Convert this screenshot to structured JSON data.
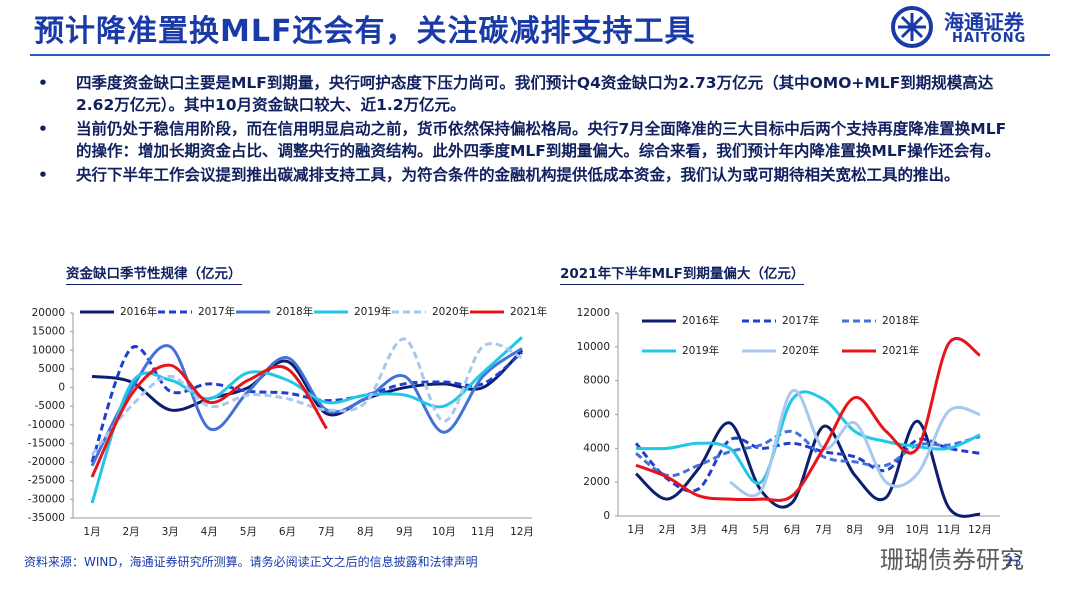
{
  "header": {
    "title": "预计降准置换MLF还会有，关注碳减排支持工具",
    "logo_cn": "海通证券",
    "logo_en": "HAITONG"
  },
  "bullets": [
    "四季度资金缺口主要是MLF到期量，央行呵护态度下压力尚可。我们预计Q4资金缺口为2.73万亿元（其中OMO+MLF到期规模高达2.62万亿元）。其中10月资金缺口较大、近1.2万亿元。",
    "当前仍处于稳信用阶段，而在信用明显启动之前，货币依然保持偏松格局。央行7月全面降准的三大目标中后两个支持再度降准置换MLF的操作：增加长期资金占比、调整央行的融资结构。此外四季度MLF到期量偏大。综合来看，我们预计年内降准置换MLF操作还会有。",
    "央行下半年工作会议提到推出碳减排支持工具，为符合条件的金融机构提供低成本资金，我们认为或可期待相关宽松工具的推出。"
  ],
  "chart_data": [
    {
      "type": "line",
      "title": "资金缺口季节性规律（亿元）",
      "categories": [
        "1月",
        "2月",
        "3月",
        "4月",
        "5月",
        "6月",
        "7月",
        "8月",
        "9月",
        "10月",
        "11月",
        "12月"
      ],
      "ylim": [
        -35000,
        20000
      ],
      "yticks": [
        -35000,
        -30000,
        -25000,
        -20000,
        -15000,
        -10000,
        -5000,
        0,
        5000,
        10000,
        15000,
        20000
      ],
      "legend": "top",
      "series": [
        {
          "name": "2016年",
          "color": "#0b1f6e",
          "line_style": "solid",
          "values": [
            3000,
            1500,
            -6000,
            -3000,
            0,
            7000,
            -7000,
            -3000,
            0,
            1000,
            0,
            10000
          ]
        },
        {
          "name": "2017年",
          "color": "#1e3fcf",
          "line_style": "dashed",
          "values": [
            -20000,
            10500,
            -1000,
            1000,
            -1000,
            -1500,
            -3500,
            -2000,
            1000,
            1500,
            1000,
            9500
          ]
        },
        {
          "name": "2018年",
          "color": "#4472d9",
          "line_style": "solid",
          "values": [
            -21000,
            -500,
            11000,
            -11000,
            -1000,
            8000,
            -6000,
            -3000,
            3000,
            -12000,
            3000,
            10500
          ]
        },
        {
          "name": "2019年",
          "color": "#22c7e8",
          "line_style": "solid",
          "values": [
            -31000,
            1000,
            2000,
            -3000,
            4000,
            2000,
            -4000,
            -2000,
            -2000,
            -5000,
            4000,
            13500
          ]
        },
        {
          "name": "2020年",
          "color": "#a8c8ee",
          "line_style": "dashed",
          "values": [
            -18000,
            -5000,
            3000,
            -5000,
            -2000,
            -3000,
            -6000,
            -4000,
            13000,
            -9000,
            11000,
            8000
          ]
        },
        {
          "name": "2021年",
          "color": "#e8141b",
          "line_style": "solid",
          "values": [
            -24000,
            -2000,
            6000,
            -4000,
            2000,
            5000,
            -11000,
            null,
            null,
            null,
            null,
            null
          ]
        }
      ]
    },
    {
      "type": "line",
      "title": "2021年下半年MLF到期量偏大（亿元）",
      "categories": [
        "1月",
        "2月",
        "3月",
        "4月",
        "5月",
        "6月",
        "7月",
        "8月",
        "9月",
        "10月",
        "11月",
        "12月"
      ],
      "ylim": [
        0,
        12000
      ],
      "yticks": [
        0,
        2000,
        4000,
        6000,
        8000,
        10000,
        12000
      ],
      "legend": "top",
      "series": [
        {
          "name": "2016年",
          "color": "#0b1f6e",
          "line_style": "solid",
          "values": [
            2500,
            1000,
            2800,
            5500,
            1500,
            800,
            5300,
            2400,
            1100,
            5600,
            500,
            100
          ]
        },
        {
          "name": "2017年",
          "color": "#1e3fcf",
          "line_style": "dashed",
          "values": [
            4300,
            2200,
            1600,
            4500,
            4000,
            4300,
            3800,
            3500,
            2700,
            4500,
            4000,
            3700
          ]
        },
        {
          "name": "2018年",
          "color": "#4472d9",
          "line_style": "dashed",
          "values": [
            3700,
            2400,
            3000,
            3800,
            4200,
            5000,
            3500,
            3200,
            3000,
            4200,
            4200,
            4700
          ]
        },
        {
          "name": "2019年",
          "color": "#22c7e8",
          "line_style": "solid",
          "values": [
            4000,
            4000,
            4300,
            4000,
            2000,
            6900,
            6900,
            5000,
            4400,
            4100,
            4000,
            4800
          ]
        },
        {
          "name": "2020年",
          "color": "#a8c8ee",
          "line_style": "solid",
          "values": [
            null,
            null,
            null,
            2000,
            1500,
            7400,
            4000,
            5500,
            2000,
            2500,
            6200,
            6000
          ]
        },
        {
          "name": "2021年",
          "color": "#e8141b",
          "line_style": "solid",
          "values": [
            3000,
            2300,
            1200,
            1000,
            1000,
            1200,
            4000,
            7000,
            5000,
            4000,
            10200,
            9500
          ]
        }
      ]
    }
  ],
  "footer": {
    "source": "资料来源：WIND，海通证券研究所测算。请务必阅读正文之后的信息披露和法律声明",
    "watermark": "珊瑚债券研究",
    "page": "23"
  }
}
